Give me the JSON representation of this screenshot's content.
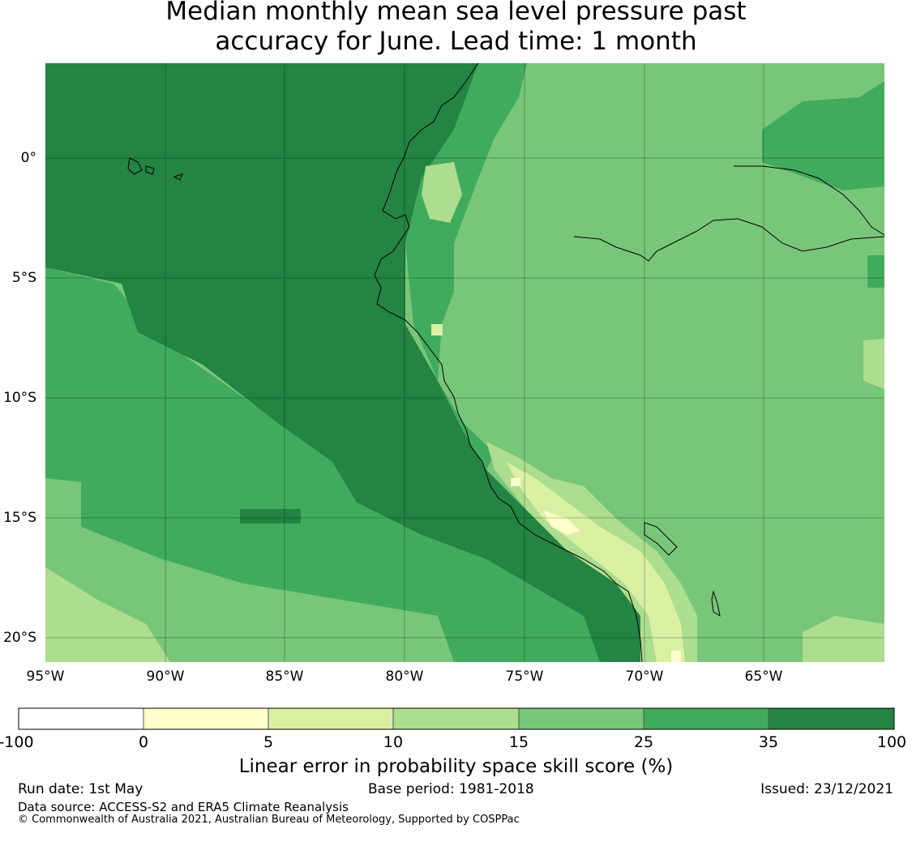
{
  "title": {
    "line1": "Median monthly mean sea level pressure past",
    "line2": "accuracy for June. Lead time: 1 month"
  },
  "map": {
    "lat_labels": [
      "0°",
      "5°S",
      "10°S",
      "15°S",
      "20°S"
    ],
    "lon_labels": [
      "95°W",
      "90°W",
      "85°W",
      "80°W",
      "75°W",
      "70°W",
      "65°W"
    ]
  },
  "colorbar": {
    "ticks": [
      "-100",
      "0",
      "5",
      "10",
      "15",
      "25",
      "35",
      "100"
    ],
    "colors": [
      "#ffffff",
      "#ffffcc",
      "#d9f0a3",
      "#addd8e",
      "#78c679",
      "#41ab5d",
      "#238443"
    ],
    "label": "Linear error in probability space skill score (%)"
  },
  "footer": {
    "run_date": "Run date: 1st May",
    "base_period": "Base period: 1981-2018",
    "issued": "Issued: 23/12/2021",
    "data_source": "Data source: ACCESS-S2 and ERA5 Climate Reanalysis",
    "copyright": "© Commonwealth of Australia 2021, Australian Bureau of Meteorology, Supported by COSPPac"
  }
}
